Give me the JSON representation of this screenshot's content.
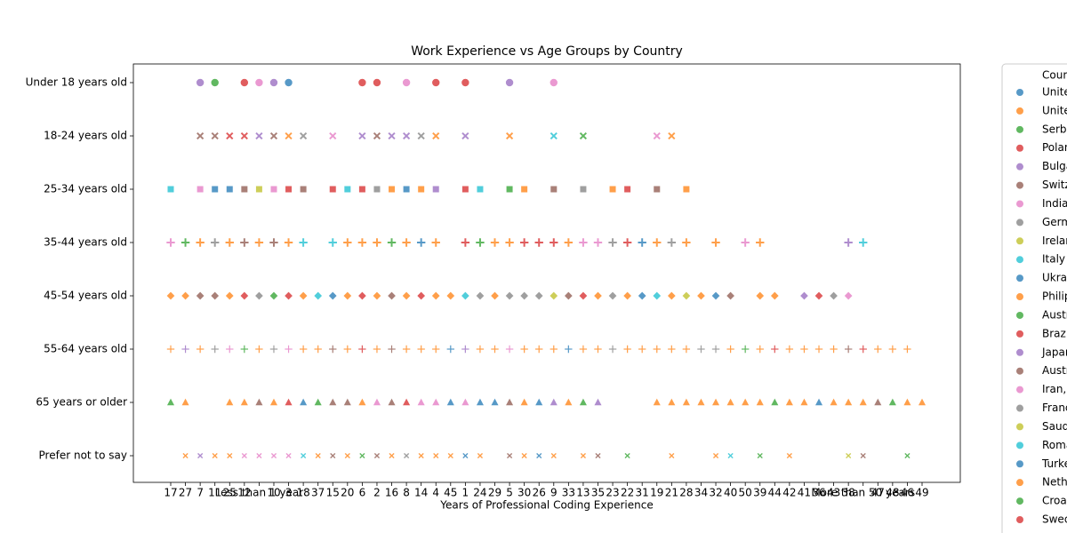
{
  "chart_data": {
    "type": "scatter",
    "title": "Work Experience vs Age Groups by Country",
    "x_label": "Years of Professional Coding Experience",
    "legend_title": "Country",
    "categories": [
      "17",
      "27",
      "7",
      "11",
      "25",
      "12",
      "Less than 1 year",
      "10",
      "3",
      "18",
      "37",
      "15",
      "20",
      "6",
      "2",
      "16",
      "8",
      "14",
      "4",
      "45",
      "1",
      "24",
      "29",
      "5",
      "30",
      "26",
      "9",
      "33",
      "13",
      "35",
      "23",
      "22",
      "31",
      "19",
      "21",
      "28",
      "34",
      "32",
      "40",
      "50",
      "39",
      "44",
      "42",
      "41",
      "36",
      "43",
      "38",
      "More than 50 years",
      "47",
      "48",
      "46",
      "49"
    ],
    "y_categories": [
      "Under 18 years old",
      "18-24 years old",
      "25-34 years old",
      "35-44 years old",
      "45-54 years old",
      "55-64 years old",
      "65 years or older",
      "Prefer not to say"
    ],
    "markers": [
      "circle",
      "x",
      "square",
      "plus",
      "diamond",
      "thin-plus",
      "triangle",
      "small-x"
    ],
    "series": [
      {
        "name": "United States of America",
        "color": "#1f77b4",
        "groups": [
          {
            "y": "Under 18 years old",
            "x": [
              "3"
            ]
          },
          {
            "y": "25-34 years old",
            "x": [
              "11",
              "25",
              "8"
            ]
          },
          {
            "y": "35-44 years old",
            "x": [
              "14",
              "31"
            ]
          },
          {
            "y": "45-54 years old",
            "x": [
              "15",
              "31",
              "32"
            ]
          },
          {
            "y": "55-64 years old",
            "x": [
              "45",
              "33"
            ]
          },
          {
            "y": "65 years or older",
            "x": [
              "18",
              "45",
              "24",
              "29",
              "26",
              "36"
            ]
          },
          {
            "y": "Prefer not to say",
            "x": [
              "1",
              "26"
            ]
          }
        ]
      },
      {
        "name": "United Kingdom of Great Britain and Northern Ireland",
        "color": "#ff7f0e",
        "groups": [
          {
            "y": "18-24 years old",
            "x": [
              "3",
              "4",
              "5",
              "21"
            ]
          },
          {
            "y": "25-34 years old",
            "x": [
              "16",
              "14",
              "30",
              "23",
              "28"
            ]
          },
          {
            "y": "35-44 years old",
            "x": [
              "7",
              "25",
              "Less than 1 year",
              "3",
              "20",
              "6",
              "2",
              "8",
              "4",
              "29",
              "5",
              "33",
              "19",
              "28",
              "32",
              "39"
            ]
          },
          {
            "y": "45-54 years old",
            "x": [
              "17",
              "27",
              "25",
              "18",
              "20",
              "2",
              "8",
              "4",
              "45",
              "29",
              "35",
              "22",
              "21",
              "34",
              "39",
              "44"
            ]
          },
          {
            "y": "55-64 years old",
            "x": [
              "17",
              "7",
              "Less than 1 year",
              "18",
              "37",
              "20",
              "2",
              "8",
              "14",
              "4",
              "24",
              "29",
              "30",
              "26",
              "9",
              "13",
              "35",
              "22",
              "31",
              "19",
              "21",
              "28",
              "40",
              "39",
              "42",
              "41",
              "36",
              "43",
              "47",
              "48",
              "46"
            ]
          },
          {
            "y": "65 years or older",
            "x": [
              "27",
              "25",
              "12",
              "10",
              "6",
              "30",
              "33",
              "19",
              "21",
              "28",
              "34",
              "32",
              "40",
              "50",
              "39",
              "42",
              "41",
              "43",
              "38",
              "More than 50 years",
              "46",
              "49"
            ]
          },
          {
            "y": "Prefer not to say",
            "x": [
              "27",
              "11",
              "25",
              "37",
              "20",
              "16",
              "14",
              "4",
              "45",
              "24",
              "30",
              "9",
              "13",
              "21",
              "32",
              "42"
            ]
          }
        ]
      },
      {
        "name": "Serbia",
        "color": "#2ca02c",
        "groups": [
          {
            "y": "Under 18 years old",
            "x": [
              "11"
            ]
          },
          {
            "y": "18-24 years old",
            "x": [
              "13"
            ]
          },
          {
            "y": "25-34 years old",
            "x": [
              "5"
            ]
          },
          {
            "y": "35-44 years old",
            "x": [
              "27",
              "16",
              "24"
            ]
          },
          {
            "y": "45-54 years old",
            "x": [
              "10"
            ]
          },
          {
            "y": "55-64 years old",
            "x": [
              "12",
              "50"
            ]
          },
          {
            "y": "65 years or older",
            "x": [
              "17",
              "37",
              "13",
              "44",
              "48"
            ]
          },
          {
            "y": "Prefer not to say",
            "x": [
              "6",
              "22",
              "39",
              "46"
            ]
          }
        ]
      },
      {
        "name": "Poland",
        "color": "#d62728",
        "groups": [
          {
            "y": "Under 18 years old",
            "x": [
              "12",
              "6",
              "2",
              "4",
              "1"
            ]
          },
          {
            "y": "18-24 years old",
            "x": [
              "25",
              "12"
            ]
          },
          {
            "y": "25-34 years old",
            "x": [
              "3",
              "15",
              "6",
              "1",
              "22"
            ]
          },
          {
            "y": "35-44 years old",
            "x": [
              "1",
              "30",
              "26",
              "9",
              "22"
            ]
          },
          {
            "y": "45-54 years old",
            "x": [
              "12",
              "3",
              "6",
              "14",
              "13",
              "36"
            ]
          },
          {
            "y": "55-64 years old",
            "x": [
              "6",
              "44",
              "More than 50 years"
            ]
          },
          {
            "y": "65 years or older",
            "x": [
              "3",
              "8"
            ]
          }
        ]
      },
      {
        "name": "Bulgaria",
        "color": "#9467bd",
        "groups": [
          {
            "y": "Under 18 years old",
            "x": [
              "7",
              "10",
              "5"
            ]
          },
          {
            "y": "18-24 years old",
            "x": [
              "Less than 1 year",
              "6",
              "16",
              "8",
              "1"
            ]
          },
          {
            "y": "25-34 years old",
            "x": [
              "4"
            ]
          },
          {
            "y": "35-44 years old",
            "x": [
              "38"
            ]
          },
          {
            "y": "45-54 years old",
            "x": [
              "41"
            ]
          },
          {
            "y": "55-64 years old",
            "x": [
              "27",
              "1"
            ]
          },
          {
            "y": "65 years or older",
            "x": [
              "9",
              "35"
            ]
          },
          {
            "y": "Prefer not to say",
            "x": [
              "7"
            ]
          }
        ]
      },
      {
        "name": "Switzerland",
        "color": "#8c564b",
        "groups": [
          {
            "y": "18-24 years old",
            "x": [
              "7",
              "11",
              "10",
              "2"
            ]
          },
          {
            "y": "25-34 years old",
            "x": [
              "12",
              "18",
              "9",
              "19"
            ]
          },
          {
            "y": "35-44 years old",
            "x": [
              "12",
              "10"
            ]
          },
          {
            "y": "45-54 years old",
            "x": [
              "7",
              "11",
              "16",
              "33",
              "40"
            ]
          },
          {
            "y": "55-64 years old",
            "x": [
              "15",
              "16",
              "38"
            ]
          },
          {
            "y": "65 years or older",
            "x": [
              "Less than 1 year",
              "15",
              "20",
              "16",
              "5",
              "47"
            ]
          },
          {
            "y": "Prefer not to say",
            "x": [
              "15",
              "2",
              "5",
              "35",
              "More than 50 years"
            ]
          }
        ]
      },
      {
        "name": "India",
        "color": "#e377c2",
        "groups": [
          {
            "y": "Under 18 years old",
            "x": [
              "Less than 1 year",
              "8",
              "9"
            ]
          },
          {
            "y": "18-24 years old",
            "x": [
              "15",
              "19"
            ]
          },
          {
            "y": "25-34 years old",
            "x": [
              "7",
              "10"
            ]
          },
          {
            "y": "35-44 years old",
            "x": [
              "17",
              "13",
              "35",
              "50"
            ]
          },
          {
            "y": "45-54 years old",
            "x": [
              "38"
            ]
          },
          {
            "y": "55-64 years old",
            "x": [
              "25",
              "3",
              "5"
            ]
          },
          {
            "y": "65 years or older",
            "x": [
              "2",
              "14",
              "4",
              "1"
            ]
          },
          {
            "y": "Prefer not to say",
            "x": [
              "12",
              "Less than 1 year",
              "10",
              "3"
            ]
          }
        ]
      },
      {
        "name": "Germany",
        "color": "#7f7f7f",
        "groups": [
          {
            "y": "18-24 years old",
            "x": [
              "18",
              "14"
            ]
          },
          {
            "y": "25-34 years old",
            "x": [
              "2",
              "13"
            ]
          },
          {
            "y": "35-44 years old",
            "x": [
              "11",
              "23",
              "21"
            ]
          },
          {
            "y": "45-54 years old",
            "x": [
              "Less than 1 year",
              "24",
              "5",
              "30",
              "26",
              "23",
              "43"
            ]
          },
          {
            "y": "55-64 years old",
            "x": [
              "11",
              "10",
              "23",
              "34",
              "32"
            ]
          },
          {
            "y": "Prefer not to say",
            "x": [
              "8"
            ]
          }
        ]
      },
      {
        "name": "Ireland",
        "color": "#bcbd22",
        "groups": [
          {
            "y": "25-34 years old",
            "x": [
              "Less than 1 year"
            ]
          },
          {
            "y": "45-54 years old",
            "x": [
              "9",
              "28"
            ]
          },
          {
            "y": "Prefer not to say",
            "x": [
              "38"
            ]
          }
        ]
      },
      {
        "name": "Italy",
        "color": "#17becf",
        "groups": [
          {
            "y": "18-24 years old",
            "x": [
              "9"
            ]
          },
          {
            "y": "25-34 years old",
            "x": [
              "17",
              "20",
              "24"
            ]
          },
          {
            "y": "35-44 years old",
            "x": [
              "18",
              "15",
              "More than 50 years"
            ]
          },
          {
            "y": "45-54 years old",
            "x": [
              "37",
              "1",
              "19"
            ]
          },
          {
            "y": "Prefer not to say",
            "x": [
              "18",
              "40"
            ]
          }
        ]
      },
      {
        "name": "Ukraine",
        "color": "#1f77b4",
        "groups": []
      },
      {
        "name": "Philippines",
        "color": "#ff7f0e",
        "groups": []
      },
      {
        "name": "Austria",
        "color": "#2ca02c",
        "groups": []
      },
      {
        "name": "Brazil",
        "color": "#d62728",
        "groups": []
      },
      {
        "name": "Japan",
        "color": "#9467bd",
        "groups": []
      },
      {
        "name": "Australia",
        "color": "#8c564b",
        "groups": []
      },
      {
        "name": "Iran, Islamic Republic of...",
        "color": "#e377c2",
        "groups": []
      },
      {
        "name": "France",
        "color": "#7f7f7f",
        "groups": []
      },
      {
        "name": "Saudi Arabia",
        "color": "#bcbd22",
        "groups": []
      },
      {
        "name": "Romania",
        "color": "#17becf",
        "groups": []
      },
      {
        "name": "Turkey",
        "color": "#1f77b4",
        "groups": []
      },
      {
        "name": "Netherlands",
        "color": "#ff7f0e",
        "groups": []
      },
      {
        "name": "Croatia",
        "color": "#2ca02c",
        "groups": []
      },
      {
        "name": "Sweden",
        "color": "#d62728",
        "groups": []
      }
    ]
  }
}
